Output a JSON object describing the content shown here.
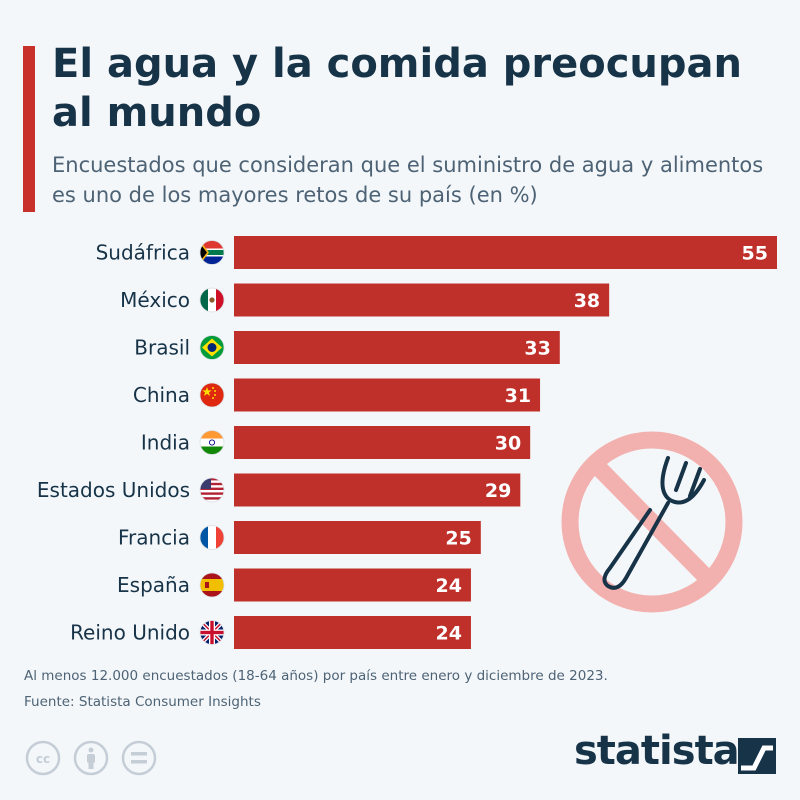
{
  "header": {
    "title": "El agua y la comida preocupan al mundo",
    "subtitle": "Encuestados que consideran que el suministro de agua y alimentos es uno de los mayores retos de su país (en %)"
  },
  "chart_data": {
    "type": "bar",
    "orientation": "horizontal",
    "categories": [
      "Sudáfrica",
      "México",
      "Brasil",
      "China",
      "India",
      "Estados Unidos",
      "Francia",
      "España",
      "Reino Unido"
    ],
    "values": [
      55,
      38,
      33,
      31,
      30,
      29,
      25,
      24,
      24
    ],
    "flags": [
      "south-africa",
      "mexico",
      "brazil",
      "china",
      "india",
      "united-states",
      "france",
      "spain",
      "united-kingdom"
    ],
    "title": "",
    "xlabel": "",
    "ylabel": "",
    "xlim": [
      0,
      55
    ],
    "grid": false,
    "bar_color": "#c0302b",
    "label_color": "#ffffff"
  },
  "illustration": {
    "icon": "no-fork-icon",
    "color": "#f2b0ae"
  },
  "footer": {
    "note": "Al menos 12.000 encuestados (18-64 años) por país entre enero y diciembre de 2023.",
    "source": "Fuente: Statista Consumer Insights",
    "brand": "statista",
    "license_icons": [
      "cc-icon",
      "by-icon",
      "nd-icon"
    ]
  },
  "colors": {
    "accent": "#c8302a",
    "title": "#173348",
    "text": "#4d6375",
    "background": "#f4f7fa"
  }
}
